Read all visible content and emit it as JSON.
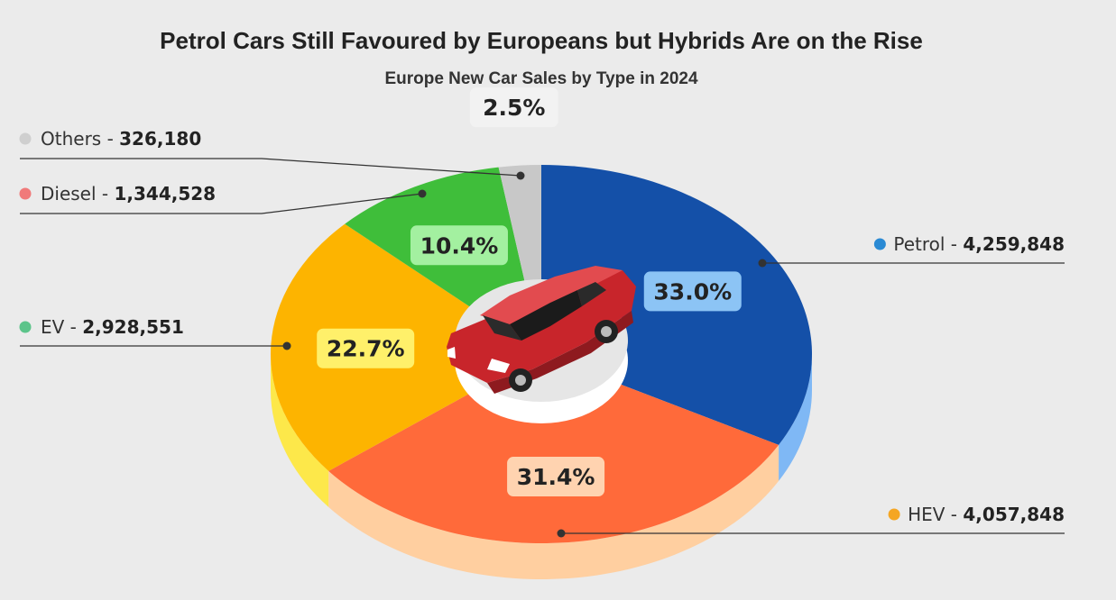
{
  "title": "Petrol Cars Still Favoured by Europeans but Hybrids Are on the Rise",
  "subtitle": "Europe New Car Sales by Type in 2024",
  "chart_data": {
    "type": "pie",
    "style": "3d-donut",
    "slices": [
      {
        "name": "Petrol",
        "value": 4259848,
        "value_label": "4,259,848",
        "percent": 33.0,
        "percent_label": "33.0%",
        "color": "#1450a8",
        "side_color": "#7fb8f5",
        "dot_color": "#2a8ad4",
        "label_bg": "#8cc4f5"
      },
      {
        "name": "HEV",
        "value": 4057848,
        "value_label": "4,057,848",
        "percent": 31.4,
        "percent_label": "31.4%",
        "color": "#ff6a3a",
        "side_color": "#ffcfa0",
        "dot_color": "#f5a623",
        "label_bg": "#ffd3b0"
      },
      {
        "name": "EV",
        "value": 2928551,
        "value_label": "2,928,551",
        "percent": 22.7,
        "percent_label": "22.7%",
        "color": "#fdb400",
        "side_color": "#fde84a",
        "dot_color": "#5cc48a",
        "label_bg": "#fff06a"
      },
      {
        "name": "Diesel",
        "value": 1344528,
        "value_label": "1,344,528",
        "percent": 10.4,
        "percent_label": "10.4%",
        "color": "#3fbe3a",
        "side_color": "#8fd98a",
        "dot_color": "#f07a7a",
        "label_bg": "#a3f0a0"
      },
      {
        "name": "Others",
        "value": 326180,
        "value_label": "326,180",
        "percent": 2.5,
        "percent_label": "2.5%",
        "color": "#c8c8c8",
        "side_color": "#dcdcdc",
        "dot_color": "#cfcfcf",
        "label_bg": "#f2f2f2"
      }
    ]
  }
}
